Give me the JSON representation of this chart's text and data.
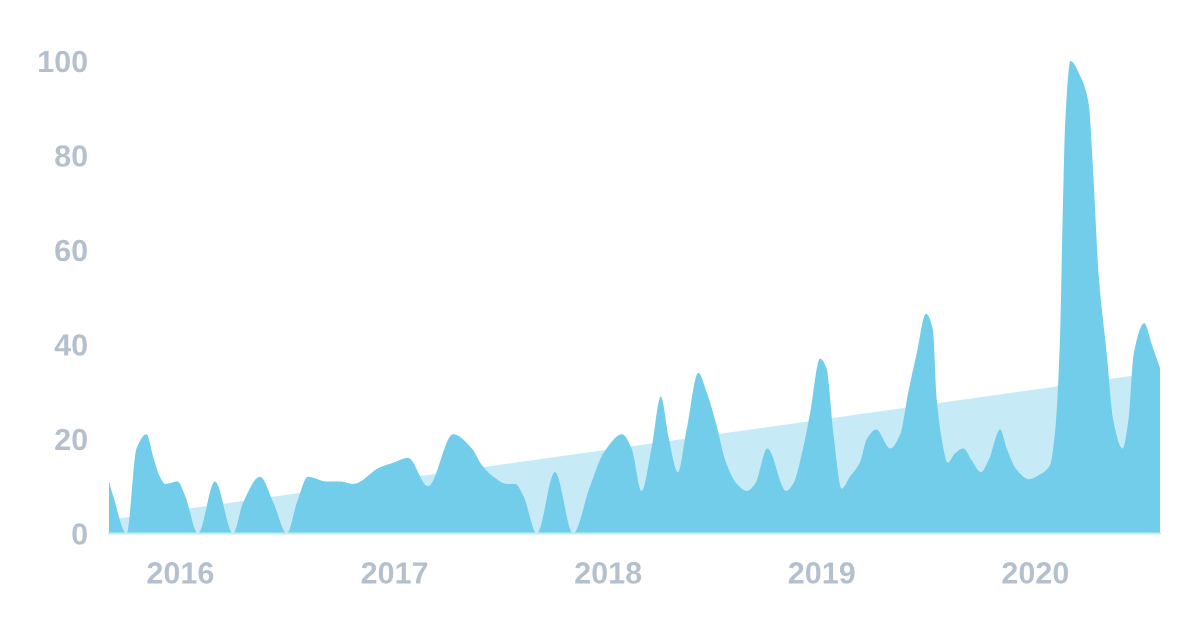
{
  "chart_data": {
    "type": "area",
    "xlim": [
      "2015-09-01",
      "2020-08-01"
    ],
    "xticks": [
      "2016",
      "2017",
      "2018",
      "2019",
      "2020"
    ],
    "ylim": [
      0,
      100
    ],
    "yticks": [
      0,
      20,
      40,
      60,
      80,
      100
    ],
    "series": [
      {
        "color": "#c6ebf7",
        "x": [
          "2015-09-01",
          "2020-08-01"
        ],
        "values": [
          2.9,
          34.2
        ]
      },
      {
        "color": "#72cdea",
        "x": [
          "2015-09-01",
          "2015-09-08",
          "2015-10-01",
          "2015-10-18",
          "2015-11-04",
          "2015-11-16",
          "2015-11-27",
          "2015-12-06",
          "2015-12-27",
          "2016-01-09",
          "2016-01-31",
          "2016-02-29",
          "2016-03-31",
          "2016-04-17",
          "2016-05-16",
          "2016-06-08",
          "2016-07-01",
          "2016-07-18",
          "2016-08-06",
          "2016-09-07",
          "2016-09-30",
          "2016-10-22",
          "2016-12-07",
          "2016-12-30",
          "2017-01-24",
          "2017-02-27",
          "2017-04-11",
          "2017-05-13",
          "2017-05-30",
          "2017-06-19",
          "2017-07-12",
          "2017-07-26",
          "2017-08-09",
          "2017-09-01",
          "2017-10-02",
          "2017-11-02",
          "2017-12-01",
          "2017-12-24",
          "2018-01-25",
          "2018-02-10",
          "2018-02-27",
          "2018-03-16",
          "2018-04-01",
          "2018-04-14",
          "2018-04-30",
          "2018-05-15",
          "2018-06-04",
          "2018-06-18",
          "2018-07-05",
          "2018-07-20",
          "2018-08-09",
          "2018-08-26",
          "2018-09-09",
          "2018-09-30",
          "2018-11-01",
          "2018-11-13",
          "2018-11-30",
          "2018-12-12",
          "2018-12-29",
          "2019-01-09",
          "2019-01-21",
          "2019-02-04",
          "2019-02-18",
          "2019-03-07",
          "2019-03-19",
          "2019-04-04",
          "2019-04-28",
          "2019-05-15",
          "2019-05-29",
          "2019-06-12",
          "2019-06-28",
          "2019-07-10",
          "2019-07-16",
          "2019-07-25",
          "2019-08-04",
          "2019-08-17",
          "2019-08-31",
          "2019-09-14",
          "2019-09-30",
          "2019-10-13",
          "2019-11-02",
          "2019-11-13",
          "2019-11-30",
          "2019-12-21",
          "2020-01-09",
          "2020-01-26",
          "2020-02-04",
          "2020-02-12",
          "2020-02-17",
          "2020-02-21",
          "2020-03-01",
          "2020-03-17",
          "2020-04-01",
          "2020-04-09",
          "2020-04-18",
          "2020-05-02",
          "2020-05-13",
          "2020-05-29",
          "2020-06-08",
          "2020-06-17",
          "2020-07-05",
          "2020-07-18",
          "2020-08-01"
        ],
        "values": [
          11,
          8,
          0,
          18,
          21,
          16,
          12,
          10.5,
          11,
          8,
          0,
          11,
          0,
          6.5,
          12,
          6.5,
          0,
          6.5,
          12,
          11,
          11,
          10.5,
          14,
          15,
          16,
          10,
          21,
          18,
          14.5,
          12,
          10.5,
          10.5,
          8,
          0,
          13,
          0,
          10,
          17,
          21,
          18,
          9,
          18,
          29,
          20.5,
          13,
          22,
          34,
          30,
          23,
          15.5,
          10.5,
          9,
          10.5,
          18,
          9,
          10.5,
          18,
          25.5,
          37,
          35,
          21,
          9.5,
          12,
          15,
          20,
          22,
          18,
          21,
          30,
          38,
          46.5,
          43,
          29,
          20,
          15,
          17,
          18,
          15.5,
          13,
          15.5,
          22,
          18,
          13.5,
          11.5,
          12.5,
          14.5,
          22,
          41,
          69,
          87,
          100,
          97,
          91,
          76,
          55,
          38,
          24,
          18,
          24,
          38,
          44.5,
          40,
          35
        ]
      }
    ]
  }
}
